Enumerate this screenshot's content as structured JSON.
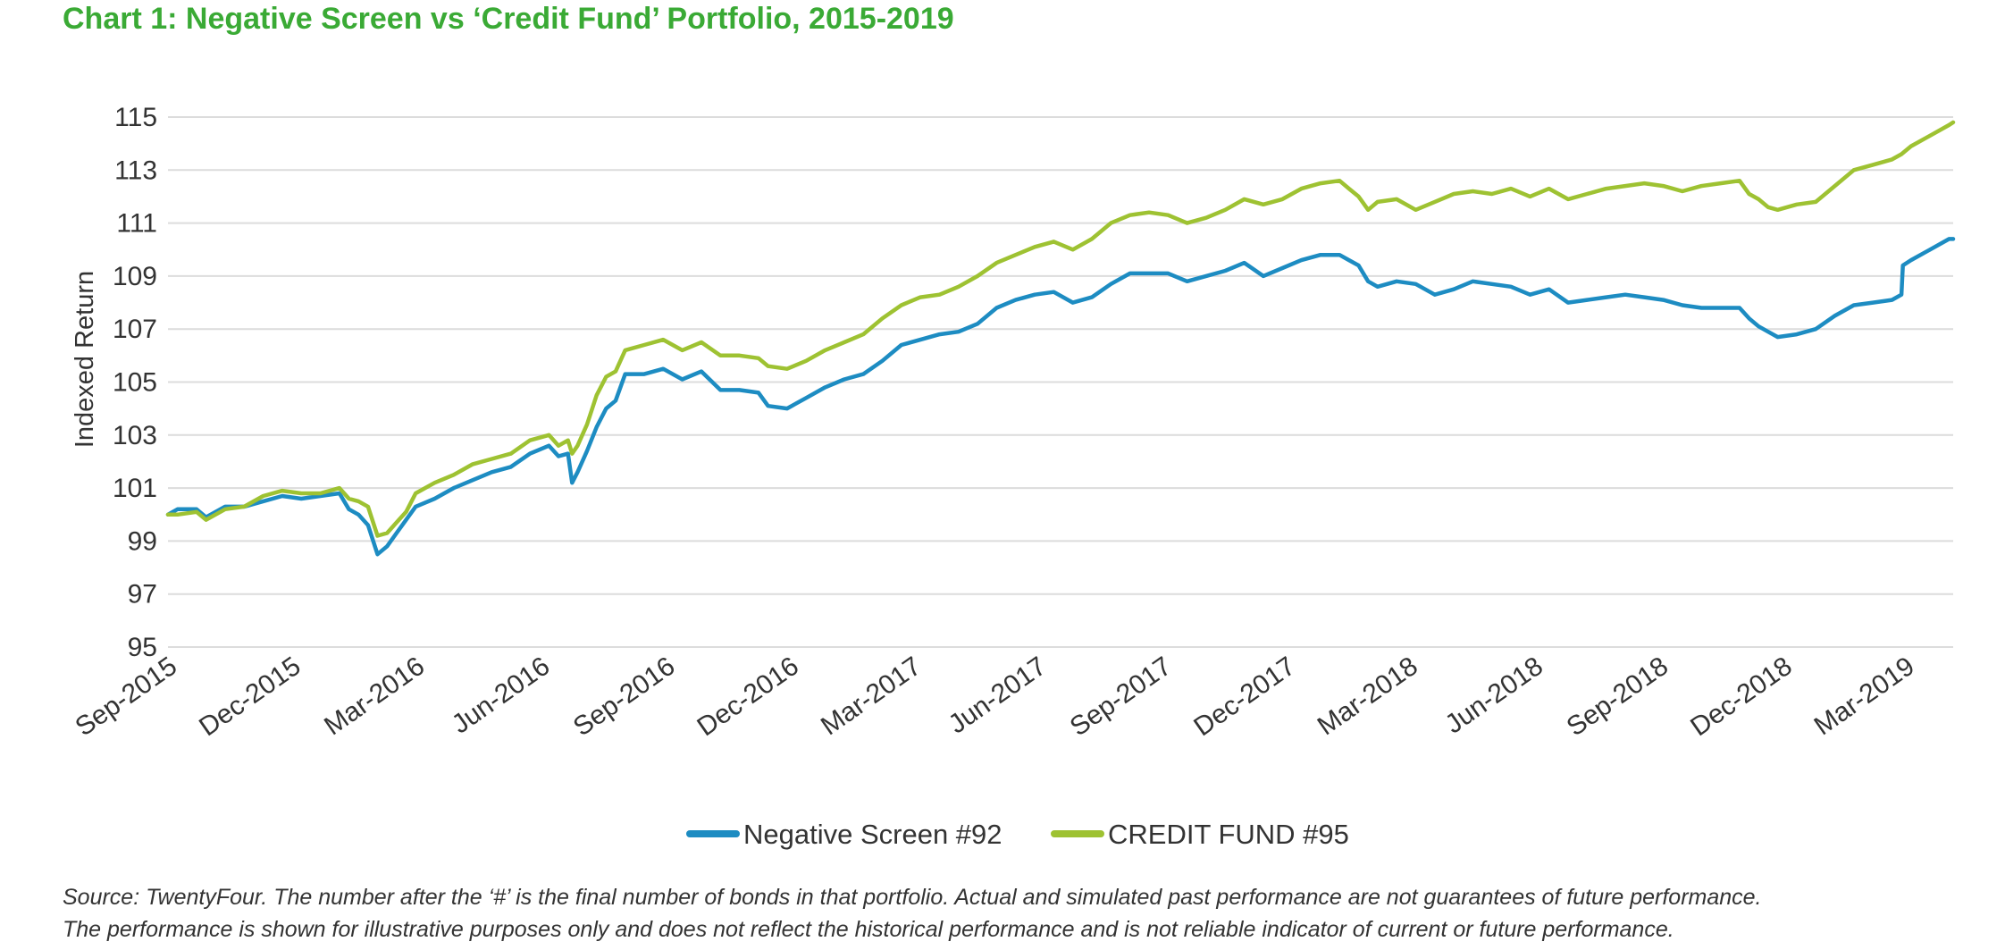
{
  "title": "Chart 1: Negative Screen vs ‘Credit Fund’ Portfolio, 2015-2019",
  "source": {
    "line1": "Source: TwentyFour. The number after the ‘#’ is the final number of bonds in that portfolio. Actual and simulated past performance are not guarantees of future performance.",
    "line2": "The performance is shown for illustrative purposes only and does not reflect the historical performance and is not reliable indicator of current or future performance."
  },
  "colors": {
    "title": "#3aaa35",
    "negative_screen": "#1d8cc2",
    "credit_fund": "#9ec232",
    "grid": "#dcdcdc",
    "text": "#333333"
  },
  "chart_data": {
    "type": "line",
    "title": "Chart 1: Negative Screen vs ‘Credit Fund’ Portfolio, 2015-2019",
    "xlabel": "",
    "ylabel": "Indexed Return",
    "ylim": [
      95,
      115
    ],
    "yticks": [
      95,
      97,
      99,
      101,
      103,
      105,
      107,
      109,
      111,
      113,
      115
    ],
    "xlim": [
      "2015-09-01",
      "2019-04-05"
    ],
    "xticks": [
      {
        "date": "2015-09-01",
        "label": "Sep-2015"
      },
      {
        "date": "2015-12-01",
        "label": "Dec-2015"
      },
      {
        "date": "2016-03-01",
        "label": "Mar-2016"
      },
      {
        "date": "2016-06-01",
        "label": "Jun-2016"
      },
      {
        "date": "2016-09-01",
        "label": "Sep-2016"
      },
      {
        "date": "2016-12-01",
        "label": "Dec-2016"
      },
      {
        "date": "2017-03-01",
        "label": "Mar-2017"
      },
      {
        "date": "2017-06-01",
        "label": "Jun-2017"
      },
      {
        "date": "2017-09-01",
        "label": "Sep-2017"
      },
      {
        "date": "2017-12-01",
        "label": "Dec-2017"
      },
      {
        "date": "2018-03-01",
        "label": "Mar-2018"
      },
      {
        "date": "2018-06-01",
        "label": "Jun-2018"
      },
      {
        "date": "2018-09-01",
        "label": "Sep-2018"
      },
      {
        "date": "2018-12-01",
        "label": "Dec-2018"
      },
      {
        "date": "2019-03-01",
        "label": "Mar-2019"
      }
    ],
    "grid": true,
    "legend_position": "bottom",
    "series": [
      {
        "name": "Negative Screen #92",
        "color": "#1d8cc2",
        "points": [
          [
            "2015-09-01",
            100.0
          ],
          [
            "2015-09-08",
            100.2
          ],
          [
            "2015-09-22",
            100.2
          ],
          [
            "2015-09-29",
            99.9
          ],
          [
            "2015-10-13",
            100.3
          ],
          [
            "2015-10-27",
            100.3
          ],
          [
            "2015-11-10",
            100.5
          ],
          [
            "2015-11-24",
            100.7
          ],
          [
            "2015-12-08",
            100.6
          ],
          [
            "2015-12-22",
            100.7
          ],
          [
            "2016-01-05",
            100.8
          ],
          [
            "2016-01-12",
            100.2
          ],
          [
            "2016-01-19",
            100.0
          ],
          [
            "2016-01-26",
            99.6
          ],
          [
            "2016-02-02",
            98.5
          ],
          [
            "2016-02-09",
            98.8
          ],
          [
            "2016-02-16",
            99.3
          ],
          [
            "2016-02-23",
            99.8
          ],
          [
            "2016-03-01",
            100.3
          ],
          [
            "2016-03-15",
            100.6
          ],
          [
            "2016-03-29",
            101.0
          ],
          [
            "2016-04-12",
            101.3
          ],
          [
            "2016-04-26",
            101.6
          ],
          [
            "2016-05-10",
            101.8
          ],
          [
            "2016-05-24",
            102.3
          ],
          [
            "2016-06-07",
            102.6
          ],
          [
            "2016-06-14",
            102.2
          ],
          [
            "2016-06-21",
            102.3
          ],
          [
            "2016-06-24",
            101.2
          ],
          [
            "2016-06-28",
            101.6
          ],
          [
            "2016-07-05",
            102.4
          ],
          [
            "2016-07-12",
            103.3
          ],
          [
            "2016-07-19",
            104.0
          ],
          [
            "2016-07-26",
            104.3
          ],
          [
            "2016-08-02",
            105.3
          ],
          [
            "2016-08-16",
            105.3
          ],
          [
            "2016-08-30",
            105.5
          ],
          [
            "2016-09-13",
            105.1
          ],
          [
            "2016-09-27",
            105.4
          ],
          [
            "2016-10-11",
            104.7
          ],
          [
            "2016-10-25",
            104.7
          ],
          [
            "2016-11-08",
            104.6
          ],
          [
            "2016-11-15",
            104.1
          ],
          [
            "2016-11-29",
            104.0
          ],
          [
            "2016-12-13",
            104.4
          ],
          [
            "2016-12-27",
            104.8
          ],
          [
            "2017-01-10",
            105.1
          ],
          [
            "2017-01-24",
            105.3
          ],
          [
            "2017-02-07",
            105.8
          ],
          [
            "2017-02-21",
            106.4
          ],
          [
            "2017-03-07",
            106.6
          ],
          [
            "2017-03-21",
            106.8
          ],
          [
            "2017-04-04",
            106.9
          ],
          [
            "2017-04-18",
            107.2
          ],
          [
            "2017-05-02",
            107.8
          ],
          [
            "2017-05-16",
            108.1
          ],
          [
            "2017-05-30",
            108.3
          ],
          [
            "2017-06-13",
            108.4
          ],
          [
            "2017-06-27",
            108.0
          ],
          [
            "2017-07-11",
            108.2
          ],
          [
            "2017-07-25",
            108.7
          ],
          [
            "2017-08-08",
            109.1
          ],
          [
            "2017-08-22",
            109.1
          ],
          [
            "2017-09-05",
            109.1
          ],
          [
            "2017-09-19",
            108.8
          ],
          [
            "2017-10-03",
            109.0
          ],
          [
            "2017-10-17",
            109.2
          ],
          [
            "2017-10-31",
            109.5
          ],
          [
            "2017-11-14",
            109.0
          ],
          [
            "2017-11-28",
            109.3
          ],
          [
            "2017-12-12",
            109.6
          ],
          [
            "2017-12-26",
            109.8
          ],
          [
            "2018-01-09",
            109.8
          ],
          [
            "2018-01-16",
            109.6
          ],
          [
            "2018-01-23",
            109.4
          ],
          [
            "2018-01-30",
            108.8
          ],
          [
            "2018-02-06",
            108.6
          ],
          [
            "2018-02-20",
            108.8
          ],
          [
            "2018-03-06",
            108.7
          ],
          [
            "2018-03-20",
            108.3
          ],
          [
            "2018-04-03",
            108.5
          ],
          [
            "2018-04-17",
            108.8
          ],
          [
            "2018-05-01",
            108.7
          ],
          [
            "2018-05-15",
            108.6
          ],
          [
            "2018-05-29",
            108.3
          ],
          [
            "2018-06-12",
            108.5
          ],
          [
            "2018-06-26",
            108.0
          ],
          [
            "2018-07-10",
            108.1
          ],
          [
            "2018-07-24",
            108.2
          ],
          [
            "2018-08-07",
            108.3
          ],
          [
            "2018-08-21",
            108.2
          ],
          [
            "2018-09-04",
            108.1
          ],
          [
            "2018-09-18",
            107.9
          ],
          [
            "2018-10-02",
            107.8
          ],
          [
            "2018-10-16",
            107.8
          ],
          [
            "2018-10-30",
            107.8
          ],
          [
            "2018-11-06",
            107.4
          ],
          [
            "2018-11-13",
            107.1
          ],
          [
            "2018-11-20",
            106.9
          ],
          [
            "2018-11-27",
            106.7
          ],
          [
            "2018-12-11",
            106.8
          ],
          [
            "2018-12-25",
            107.0
          ],
          [
            "2019-01-08",
            107.5
          ],
          [
            "2019-01-22",
            107.9
          ],
          [
            "2019-02-05",
            108.0
          ],
          [
            "2019-02-19",
            108.1
          ],
          [
            "2019-02-26",
            108.3
          ],
          [
            "2019-02-27",
            109.4
          ],
          [
            "2019-03-05",
            109.6
          ],
          [
            "2019-03-19",
            110.0
          ],
          [
            "2019-04-02",
            110.4
          ],
          [
            "2019-04-05",
            110.4
          ]
        ]
      },
      {
        "name": "CREDIT FUND #95",
        "color": "#9ec232",
        "points": [
          [
            "2015-09-01",
            100.0
          ],
          [
            "2015-09-08",
            100.0
          ],
          [
            "2015-09-22",
            100.1
          ],
          [
            "2015-09-29",
            99.8
          ],
          [
            "2015-10-13",
            100.2
          ],
          [
            "2015-10-27",
            100.3
          ],
          [
            "2015-11-10",
            100.7
          ],
          [
            "2015-11-24",
            100.9
          ],
          [
            "2015-12-08",
            100.8
          ],
          [
            "2015-12-22",
            100.8
          ],
          [
            "2016-01-05",
            101.0
          ],
          [
            "2016-01-12",
            100.6
          ],
          [
            "2016-01-19",
            100.5
          ],
          [
            "2016-01-26",
            100.3
          ],
          [
            "2016-02-02",
            99.2
          ],
          [
            "2016-02-09",
            99.3
          ],
          [
            "2016-02-16",
            99.7
          ],
          [
            "2016-02-23",
            100.1
          ],
          [
            "2016-03-01",
            100.8
          ],
          [
            "2016-03-15",
            101.2
          ],
          [
            "2016-03-29",
            101.5
          ],
          [
            "2016-04-12",
            101.9
          ],
          [
            "2016-04-26",
            102.1
          ],
          [
            "2016-05-10",
            102.3
          ],
          [
            "2016-05-24",
            102.8
          ],
          [
            "2016-06-07",
            103.0
          ],
          [
            "2016-06-14",
            102.6
          ],
          [
            "2016-06-21",
            102.8
          ],
          [
            "2016-06-24",
            102.3
          ],
          [
            "2016-06-28",
            102.6
          ],
          [
            "2016-07-05",
            103.4
          ],
          [
            "2016-07-12",
            104.5
          ],
          [
            "2016-07-19",
            105.2
          ],
          [
            "2016-07-26",
            105.4
          ],
          [
            "2016-08-02",
            106.2
          ],
          [
            "2016-08-16",
            106.4
          ],
          [
            "2016-08-30",
            106.6
          ],
          [
            "2016-09-13",
            106.2
          ],
          [
            "2016-09-27",
            106.5
          ],
          [
            "2016-10-11",
            106.0
          ],
          [
            "2016-10-25",
            106.0
          ],
          [
            "2016-11-08",
            105.9
          ],
          [
            "2016-11-15",
            105.6
          ],
          [
            "2016-11-29",
            105.5
          ],
          [
            "2016-12-13",
            105.8
          ],
          [
            "2016-12-27",
            106.2
          ],
          [
            "2017-01-10",
            106.5
          ],
          [
            "2017-01-24",
            106.8
          ],
          [
            "2017-02-07",
            107.4
          ],
          [
            "2017-02-21",
            107.9
          ],
          [
            "2017-03-07",
            108.2
          ],
          [
            "2017-03-21",
            108.3
          ],
          [
            "2017-04-04",
            108.6
          ],
          [
            "2017-04-18",
            109.0
          ],
          [
            "2017-05-02",
            109.5
          ],
          [
            "2017-05-16",
            109.8
          ],
          [
            "2017-05-30",
            110.1
          ],
          [
            "2017-06-13",
            110.3
          ],
          [
            "2017-06-27",
            110.0
          ],
          [
            "2017-07-11",
            110.4
          ],
          [
            "2017-07-25",
            111.0
          ],
          [
            "2017-08-08",
            111.3
          ],
          [
            "2017-08-22",
            111.4
          ],
          [
            "2017-09-05",
            111.3
          ],
          [
            "2017-09-19",
            111.0
          ],
          [
            "2017-10-03",
            111.2
          ],
          [
            "2017-10-17",
            111.5
          ],
          [
            "2017-10-31",
            111.9
          ],
          [
            "2017-11-14",
            111.7
          ],
          [
            "2017-11-28",
            111.9
          ],
          [
            "2017-12-12",
            112.3
          ],
          [
            "2017-12-26",
            112.5
          ],
          [
            "2018-01-09",
            112.6
          ],
          [
            "2018-01-16",
            112.3
          ],
          [
            "2018-01-23",
            112.0
          ],
          [
            "2018-01-30",
            111.5
          ],
          [
            "2018-02-06",
            111.8
          ],
          [
            "2018-02-20",
            111.9
          ],
          [
            "2018-03-06",
            111.5
          ],
          [
            "2018-03-20",
            111.8
          ],
          [
            "2018-04-03",
            112.1
          ],
          [
            "2018-04-17",
            112.2
          ],
          [
            "2018-05-01",
            112.1
          ],
          [
            "2018-05-15",
            112.3
          ],
          [
            "2018-05-29",
            112.0
          ],
          [
            "2018-06-12",
            112.3
          ],
          [
            "2018-06-26",
            111.9
          ],
          [
            "2018-07-10",
            112.1
          ],
          [
            "2018-07-24",
            112.3
          ],
          [
            "2018-08-07",
            112.4
          ],
          [
            "2018-08-21",
            112.5
          ],
          [
            "2018-09-04",
            112.4
          ],
          [
            "2018-09-18",
            112.2
          ],
          [
            "2018-10-02",
            112.4
          ],
          [
            "2018-10-16",
            112.5
          ],
          [
            "2018-10-30",
            112.6
          ],
          [
            "2018-11-06",
            112.1
          ],
          [
            "2018-11-13",
            111.9
          ],
          [
            "2018-11-20",
            111.6
          ],
          [
            "2018-11-27",
            111.5
          ],
          [
            "2018-12-11",
            111.7
          ],
          [
            "2018-12-25",
            111.8
          ],
          [
            "2019-01-08",
            112.4
          ],
          [
            "2019-01-22",
            113.0
          ],
          [
            "2019-02-05",
            113.2
          ],
          [
            "2019-02-19",
            113.4
          ],
          [
            "2019-02-26",
            113.6
          ],
          [
            "2019-03-05",
            113.9
          ],
          [
            "2019-03-19",
            114.3
          ],
          [
            "2019-04-02",
            114.7
          ],
          [
            "2019-04-05",
            114.8
          ]
        ]
      }
    ]
  }
}
